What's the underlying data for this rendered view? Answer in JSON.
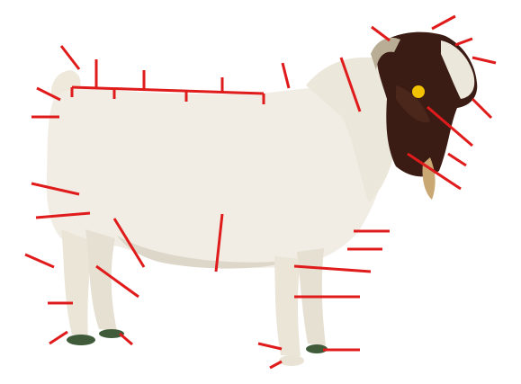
{
  "colors": {
    "background": "#ffffff",
    "leader_line": "#e01b1b",
    "coat_white": "#f1ede4",
    "coat_shadow": "#ddd7c9",
    "head_dark": "#3b1c14",
    "hoof": "#3f5b3a",
    "ear_tag": "#f2c200"
  },
  "figure": {
    "subject": "goat-photo",
    "icon": "goat-silhouette-icon"
  }
}
